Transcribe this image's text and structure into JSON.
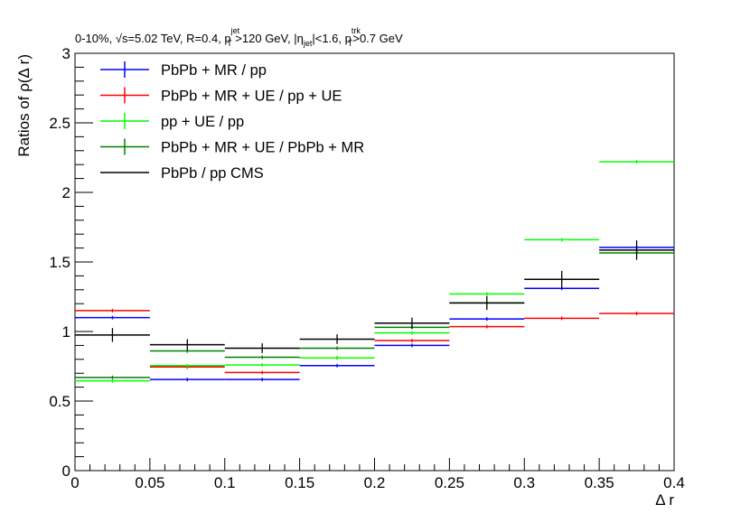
{
  "chart_data": {
    "type": "step",
    "title": "0-10%, √s=5.02 TeV, R=0.4, p_T^jet >120 GeV, |η_jet|<1.6, p_T^trk>0.7 GeV",
    "title_parts": {
      "a": "0-10%, ",
      "sqrt": "√",
      "b": "s=5.02 TeV, R=0.4, p",
      "pt_sup": "jet",
      "pt_sub": "T",
      "c": " >120 GeV, |η",
      "eta_sub": "jet",
      "d": "|<1.6, p",
      "pt2_sup": "trk",
      "pt2_sub": "T",
      "e": ">0.7 GeV"
    },
    "xlabel": "Δ r",
    "ylabel": "Ratios of ρ(Δ r)",
    "xlim": [
      0,
      0.4
    ],
    "ylim": [
      0,
      3
    ],
    "x_tick_labels": [
      "0",
      "0.05",
      "0.1",
      "0.15",
      "0.2",
      "0.25",
      "0.3",
      "0.35",
      "0.4"
    ],
    "y_tick_labels": [
      "0",
      "0.5",
      "1",
      "1.5",
      "2",
      "2.5",
      "3"
    ],
    "bin_edges": [
      0,
      0.05,
      0.1,
      0.15,
      0.2,
      0.25,
      0.3,
      0.35,
      0.4
    ],
    "legend_position": "top-left",
    "series": [
      {
        "name": "PbPb + MR / pp",
        "color": "#0000ff",
        "values": [
          1.1,
          0.655,
          0.655,
          0.755,
          0.9,
          1.09,
          1.31,
          1.605
        ],
        "errors": [
          0.005,
          0.005,
          0.005,
          0.005,
          0.005,
          0.005,
          0.005,
          0.005
        ]
      },
      {
        "name": "PbPb + MR + UE / pp + UE",
        "color": "#ff0000",
        "values": [
          1.15,
          0.745,
          0.705,
          0.81,
          0.935,
          1.035,
          1.095,
          1.13
        ],
        "errors": [
          0.005,
          0.005,
          0.005,
          0.005,
          0.005,
          0.005,
          0.005,
          0.005
        ]
      },
      {
        "name": "pp + UE / pp",
        "color": "#00ff00",
        "values": [
          0.645,
          0.755,
          0.76,
          0.81,
          0.99,
          1.27,
          1.66,
          2.22
        ],
        "errors": [
          0.005,
          0.005,
          0.005,
          0.005,
          0.005,
          0.005,
          0.005,
          0.01
        ]
      },
      {
        "name": "PbPb + MR + UE / PbPb + MR",
        "color": "#008000",
        "values": [
          0.67,
          0.86,
          0.815,
          0.88,
          1.03,
          1.205,
          1.375,
          1.565
        ],
        "errors": [
          0.005,
          0.005,
          0.005,
          0.005,
          0.005,
          0.005,
          0.005,
          0.005
        ]
      },
      {
        "name": "PbPb / pp CMS",
        "color": "#000000",
        "values": [
          0.975,
          0.905,
          0.88,
          0.945,
          1.06,
          1.205,
          1.375,
          1.585
        ],
        "errors": [
          0.05,
          0.04,
          0.035,
          0.035,
          0.04,
          0.05,
          0.06,
          0.07
        ]
      }
    ]
  }
}
